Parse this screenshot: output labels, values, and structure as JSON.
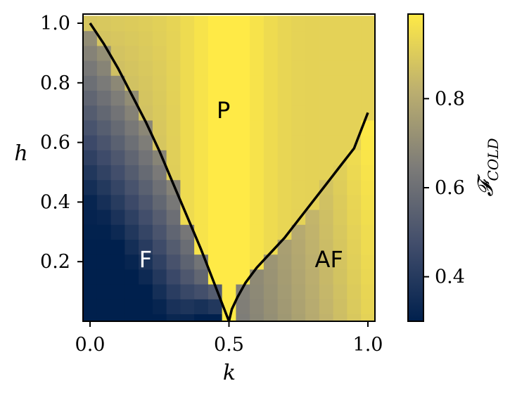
{
  "chart_data": {
    "type": "heatmap",
    "title": "",
    "xlabel": "k",
    "ylabel": "h",
    "xlim": [
      0.0,
      1.0
    ],
    "ylim": [
      0.0,
      1.0
    ],
    "xticks": [
      "0.0",
      "0.5",
      "1.0"
    ],
    "yticks": [
      "0.2",
      "0.4",
      "0.6",
      "0.8",
      "1.0"
    ],
    "grid": false,
    "colorbar": {
      "label": "𝓕",
      "label_sub": "COLD",
      "range": [
        0.3,
        0.99
      ],
      "ticks": [
        "0.4",
        "0.6",
        "0.8"
      ],
      "colormap": [
        "#00204d",
        "#414d6b",
        "#7c7b78",
        "#bcaf6f",
        "#ffea46"
      ]
    },
    "grid_size": {
      "nx": 21,
      "ny": 21
    },
    "phase_boundaries": [
      {
        "name": "F-P boundary",
        "points": [
          [
            0.0,
            1.0
          ],
          [
            0.05,
            0.93
          ],
          [
            0.1,
            0.85
          ],
          [
            0.15,
            0.76
          ],
          [
            0.2,
            0.67
          ],
          [
            0.25,
            0.57
          ],
          [
            0.3,
            0.46
          ],
          [
            0.35,
            0.35
          ],
          [
            0.4,
            0.24
          ],
          [
            0.45,
            0.12
          ],
          [
            0.5,
            0.0
          ]
        ]
      },
      {
        "name": "AF-P boundary",
        "points": [
          [
            0.5,
            0.0
          ],
          [
            0.51,
            0.04
          ],
          [
            0.53,
            0.08
          ],
          [
            0.56,
            0.13
          ],
          [
            0.6,
            0.18
          ],
          [
            0.65,
            0.23
          ],
          [
            0.7,
            0.28
          ],
          [
            0.75,
            0.34
          ],
          [
            0.8,
            0.4
          ],
          [
            0.85,
            0.46
          ],
          [
            0.9,
            0.52
          ],
          [
            0.95,
            0.58
          ],
          [
            1.0,
            0.7
          ]
        ]
      }
    ],
    "annotations": [
      {
        "text": "P",
        "x": 0.48,
        "y": 0.71,
        "light": false
      },
      {
        "text": "F",
        "x": 0.2,
        "y": 0.21,
        "light": true
      },
      {
        "text": "AF",
        "x": 0.86,
        "y": 0.21,
        "light": false
      }
    ]
  }
}
